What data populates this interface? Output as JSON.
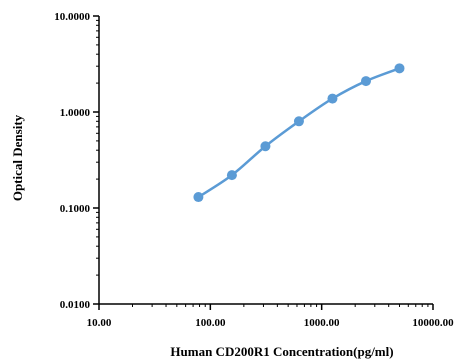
{
  "chart_data": {
    "type": "line",
    "title": "",
    "xlabel": "Human CD200R1  Concentration(pg/ml)",
    "ylabel": "Optical Density",
    "xscale": "log",
    "yscale": "log",
    "xlim": [
      10,
      10000
    ],
    "ylim": [
      0.01,
      10
    ],
    "x_ticks": [
      10,
      100,
      1000,
      10000
    ],
    "x_tick_labels": [
      "10.00",
      "100.00",
      "1000.00",
      "10000.00"
    ],
    "y_ticks": [
      0.01,
      0.1,
      1,
      10
    ],
    "y_tick_labels": [
      "0.0100",
      "0.1000",
      "1.0000",
      "10.0000"
    ],
    "grid": false,
    "legend": "none",
    "series": [
      {
        "color": "#5b9bd5",
        "x": [
          78.13,
          156.25,
          312.5,
          625,
          1250,
          2500,
          5000
        ],
        "y": [
          0.13,
          0.22,
          0.44,
          0.8,
          1.38,
          2.1,
          2.85
        ]
      }
    ]
  }
}
